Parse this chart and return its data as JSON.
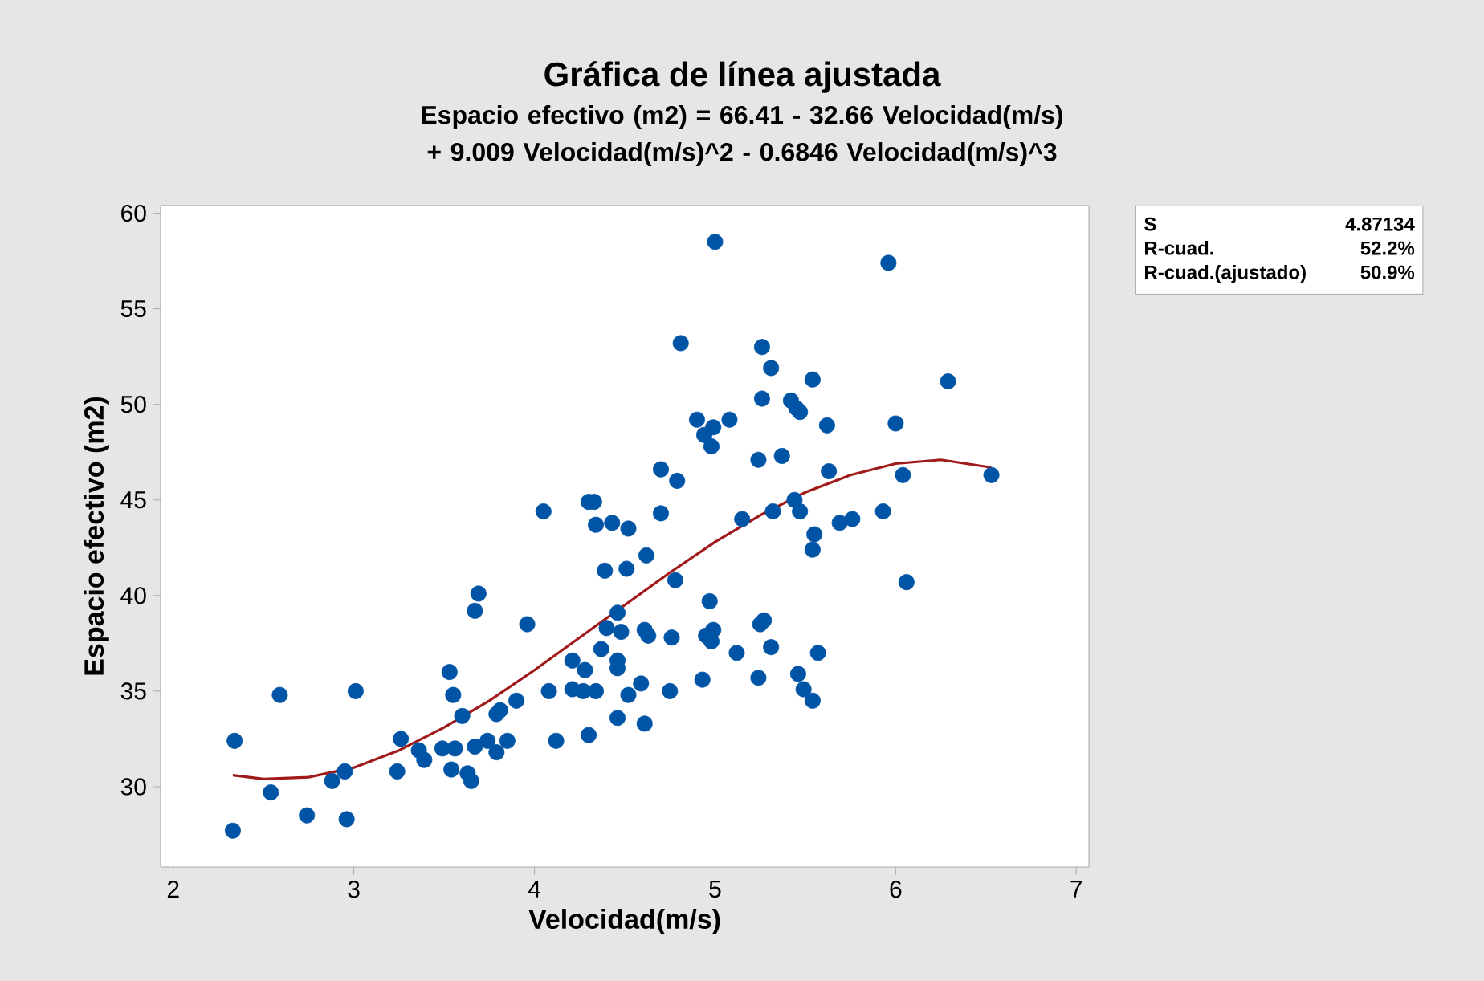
{
  "chart_data": {
    "type": "scatter",
    "title": "Gráfica de línea ajustada",
    "subtitle": "Espacio efectivo (m2) = 66.41 - 32.66 Velocidad(m/s) + 9.009 Velocidad(m/s)^2 - 0.6846 Velocidad(m/s)^3",
    "xlabel": "Velocidad(m/s)",
    "ylabel": "Espacio efectivo (m2)",
    "xlim": [
      1.93,
      7.07
    ],
    "ylim": [
      25.8,
      60.4
    ],
    "xticks": [
      2,
      3,
      4,
      5,
      6,
      7
    ],
    "yticks": [
      30,
      35,
      40,
      45,
      50,
      55,
      60
    ],
    "annotations": [
      "S",
      "4.87134",
      "R-cuad.",
      "52.2%",
      "R-cuad.(ajustado)",
      "50.9%"
    ],
    "series": [
      {
        "marker": "circle",
        "color": "#0054a6",
        "x": [
          2.34,
          2.33,
          2.59,
          2.54,
          2.74,
          2.88,
          2.95,
          2.96,
          3.01,
          3.26,
          3.24,
          3.36,
          3.39,
          3.49,
          3.56,
          3.54,
          3.63,
          3.65,
          3.53,
          3.55,
          3.6,
          3.67,
          3.74,
          3.79,
          3.85,
          3.79,
          3.81,
          3.9,
          4.08,
          4.12,
          3.67,
          3.69,
          3.96,
          4.05,
          4.3,
          4.33,
          4.34,
          4.43,
          4.52,
          4.39,
          4.51,
          4.46,
          4.4,
          4.48,
          4.37,
          4.21,
          4.28,
          4.21,
          4.27,
          4.34,
          4.46,
          4.46,
          4.3,
          4.46,
          4.52,
          4.59,
          4.61,
          4.61,
          4.62,
          4.63,
          4.7,
          4.79,
          4.7,
          4.78,
          4.81,
          5.0,
          4.9,
          4.94,
          4.99,
          4.98,
          5.08,
          5.24,
          5.37,
          5.26,
          5.31,
          5.26,
          5.42,
          5.45,
          5.47,
          5.54,
          5.62,
          5.63,
          5.96,
          6.29,
          6.0,
          6.04,
          6.53,
          5.93,
          5.76,
          5.69,
          5.55,
          5.54,
          5.44,
          5.47,
          5.32,
          5.15,
          6.06,
          4.97,
          4.76,
          4.95,
          4.99,
          4.98,
          5.25,
          5.27,
          5.12,
          5.31,
          5.57,
          4.75,
          4.93,
          5.24,
          5.46,
          5.49,
          5.54
        ],
        "values": [
          32.4,
          27.7,
          34.8,
          29.7,
          28.5,
          30.3,
          30.8,
          28.3,
          35.0,
          32.5,
          30.8,
          31.9,
          31.4,
          32.0,
          32.0,
          30.9,
          30.7,
          30.3,
          36.0,
          34.8,
          33.7,
          32.1,
          32.4,
          31.8,
          32.4,
          33.8,
          34.0,
          34.5,
          35.0,
          32.4,
          39.2,
          40.1,
          38.5,
          44.4,
          44.9,
          44.9,
          43.7,
          43.8,
          43.5,
          41.3,
          41.4,
          39.1,
          38.3,
          38.1,
          37.2,
          36.6,
          36.1,
          35.1,
          35.0,
          35.0,
          36.6,
          36.2,
          32.7,
          33.6,
          34.8,
          35.4,
          33.3,
          38.2,
          42.1,
          37.9,
          46.6,
          46.0,
          44.3,
          40.8,
          53.2,
          58.5,
          49.2,
          48.4,
          48.8,
          47.8,
          49.2,
          47.1,
          47.3,
          53.0,
          51.9,
          50.3,
          50.2,
          49.8,
          49.6,
          51.3,
          48.9,
          46.5,
          57.4,
          51.2,
          49.0,
          46.3,
          46.3,
          44.4,
          44.0,
          43.8,
          43.2,
          42.4,
          45.0,
          44.4,
          44.4,
          44.0,
          40.7,
          39.7,
          37.8,
          37.9,
          38.2,
          37.6,
          38.5,
          38.7,
          37.0,
          37.3,
          37.0,
          35.0,
          35.6,
          35.7,
          35.9,
          35.1,
          34.5
        ]
      },
      {
        "type": "line",
        "marker": "none",
        "color": "#a01a1a",
        "x": [
          2.33,
          2.5,
          2.75,
          3,
          3.25,
          3.5,
          3.75,
          4,
          4.25,
          4.5,
          4.75,
          5,
          5.25,
          5.5,
          5.75,
          6,
          6.25,
          6.53
        ],
        "values": [
          30.6,
          30.4,
          30.5,
          31.0,
          31.9,
          33.1,
          34.5,
          36.1,
          37.8,
          39.5,
          41.2,
          42.8,
          44.2,
          45.4,
          46.3,
          46.9,
          47.1,
          46.7
        ]
      }
    ]
  }
}
